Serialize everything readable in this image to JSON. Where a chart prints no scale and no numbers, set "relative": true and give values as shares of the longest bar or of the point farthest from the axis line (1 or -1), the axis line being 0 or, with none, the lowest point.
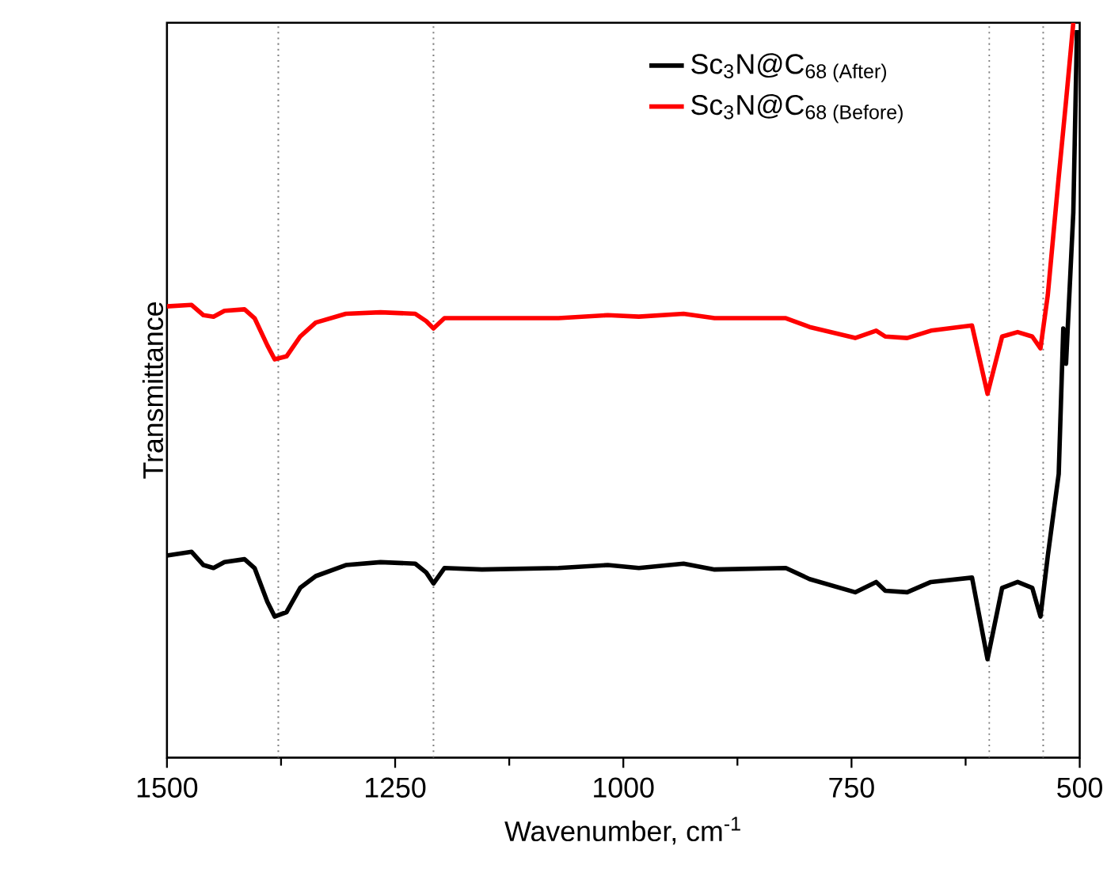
{
  "chart_data": {
    "type": "line",
    "xlabel": "Wavenumber, cm$^{-1}$",
    "ylabel": "Transmittance",
    "relative": true,
    "xlim": [
      1500,
      500
    ],
    "xticks": [
      1500,
      {
        "value": 1375,
        "label": null
      },
      1250,
      {
        "value": 1125,
        "label": null
      },
      1000,
      {
        "value": 875,
        "label": null
      },
      750,
      {
        "value": 625,
        "label": null
      },
      500
    ],
    "tick_labels": "x",
    "legend": "top right",
    "line_style": "solid",
    "marker": "none",
    "x": [
      1500,
      1473,
      1460,
      1449,
      1437,
      1415,
      1404,
      1390,
      1382,
      1369,
      1354,
      1337,
      1304,
      1266,
      1228,
      1216,
      1208,
      1196,
      1155,
      1071,
      1017,
      983,
      934,
      900,
      822,
      796,
      746,
      723,
      713,
      689,
      663,
      618,
      601,
      585,
      568,
      552,
      543,
      535,
      523,
      518,
      515,
      507,
      503
    ],
    "series": [
      {
        "name": "Sc$_{3}$N@C$_{68 (After)}$",
        "color": "#000000",
        "values": [
          0.275,
          0.28,
          0.262,
          0.258,
          0.266,
          0.27,
          0.258,
          0.212,
          0.192,
          0.198,
          0.231,
          0.247,
          0.262,
          0.266,
          0.264,
          0.252,
          0.237,
          0.258,
          0.256,
          0.258,
          0.262,
          0.258,
          0.264,
          0.256,
          0.258,
          0.243,
          0.225,
          0.239,
          0.227,
          0.225,
          0.239,
          0.245,
          0.134,
          0.231,
          0.239,
          0.231,
          0.192,
          0.274,
          0.386,
          0.584,
          0.536,
          0.742,
          0.99
        ]
      },
      {
        "name": "Sc$_{3}$N@C$_{68 (Before)}$",
        "color": "#ff0000",
        "x": [
          1500,
          1473,
          1460,
          1449,
          1437,
          1415,
          1404,
          1390,
          1382,
          1369,
          1354,
          1337,
          1304,
          1266,
          1228,
          1216,
          1208,
          1196,
          1155,
          1071,
          1017,
          983,
          934,
          900,
          822,
          796,
          746,
          723,
          713,
          689,
          663,
          618,
          601,
          585,
          568,
          552,
          543,
          535,
          523,
          515,
          507
        ],
        "values": [
          0.614,
          0.616,
          0.602,
          0.6,
          0.608,
          0.61,
          0.598,
          0.561,
          0.542,
          0.546,
          0.573,
          0.592,
          0.604,
          0.606,
          0.604,
          0.594,
          0.584,
          0.598,
          0.598,
          0.598,
          0.602,
          0.6,
          0.604,
          0.598,
          0.598,
          0.586,
          0.571,
          0.581,
          0.573,
          0.571,
          0.581,
          0.588,
          0.495,
          0.573,
          0.579,
          0.573,
          0.557,
          0.629,
          0.79,
          0.893,
          1.0
        ]
      }
    ],
    "ref_lines": [
      {
        "axis": "x",
        "value": 1378,
        "color": "#808080",
        "line_style": "dotted"
      },
      {
        "axis": "x",
        "value": 1208,
        "color": "#808080",
        "line_style": "dotted"
      },
      {
        "axis": "x",
        "value": 599,
        "color": "#808080",
        "line_style": "dotted"
      },
      {
        "axis": "x",
        "value": 540,
        "color": "#808080",
        "line_style": "dotted"
      }
    ]
  }
}
